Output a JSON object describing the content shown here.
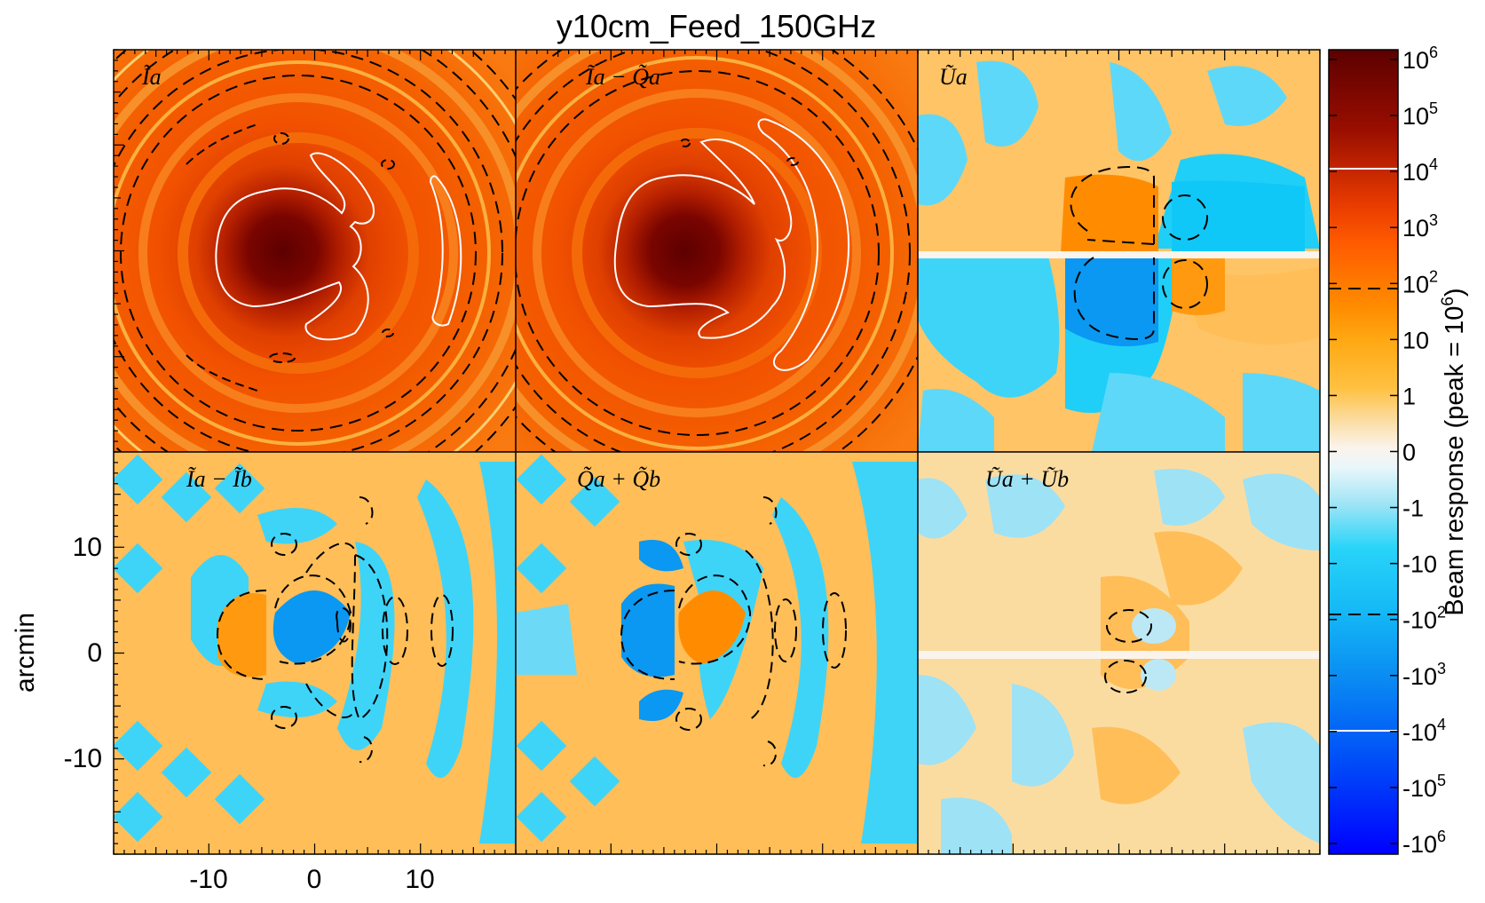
{
  "chart_data": {
    "type": "heatmap",
    "title": "y10cm_Feed_150GHz",
    "ylabel": "arcmin",
    "xlabel": "",
    "x_ticks": [
      "-10",
      "0",
      "10"
    ],
    "y_ticks": [
      "10",
      "0",
      "-10"
    ],
    "xlim": [
      -19,
      19
    ],
    "ylim": [
      -19,
      19
    ],
    "colorbar": {
      "label": "Beam response (peak = 10",
      "label_exp": "6",
      "label_close": ")",
      "ticks": [
        {
          "base": "10",
          "exp": "6"
        },
        {
          "base": "10",
          "exp": "5"
        },
        {
          "base": "10",
          "exp": "4"
        },
        {
          "base": "10",
          "exp": "3"
        },
        {
          "base": "10",
          "exp": "2"
        },
        {
          "base": "10",
          "exp": ""
        },
        {
          "base": "1",
          "exp": ""
        },
        {
          "base": "0",
          "exp": ""
        },
        {
          "base": "-1",
          "exp": ""
        },
        {
          "base": "-10",
          "exp": ""
        },
        {
          "base": "-10",
          "exp": "2"
        },
        {
          "base": "-10",
          "exp": "3"
        },
        {
          "base": "-10",
          "exp": "4"
        },
        {
          "base": "-10",
          "exp": "5"
        },
        {
          "base": "-10",
          "exp": "6"
        }
      ],
      "contour_levels": [
        "10^4 (solid white)",
        "10^2 (dashed black)",
        "-10^2 (dashed black)",
        "-10^4 (solid white)"
      ],
      "scale": "symmetric log"
    },
    "panels": [
      {
        "id": "I_a",
        "label_main": "I",
        "label_sub": "a",
        "label": "Ĩa"
      },
      {
        "id": "I_a-Q_a",
        "label": "Ĩa − Q̃a"
      },
      {
        "id": "U_a",
        "label": "Ũa"
      },
      {
        "id": "I_a-I_b",
        "label": "Ĩa − Ĩb"
      },
      {
        "id": "Q_a+Q_b",
        "label": "Q̃a + Q̃b"
      },
      {
        "id": "U_a+U_b",
        "label": "Ũa + Ũb"
      }
    ],
    "colors": {
      "dark_red": "#5c0000",
      "red_orange": "#ff5a00",
      "orange": "#ffa812",
      "cream": "#fbe9d4",
      "light_blue": "#bce8f5",
      "cyan": "#14d0f8",
      "blue": "#0a8cf2",
      "deep_blue": "#0000ff"
    }
  }
}
